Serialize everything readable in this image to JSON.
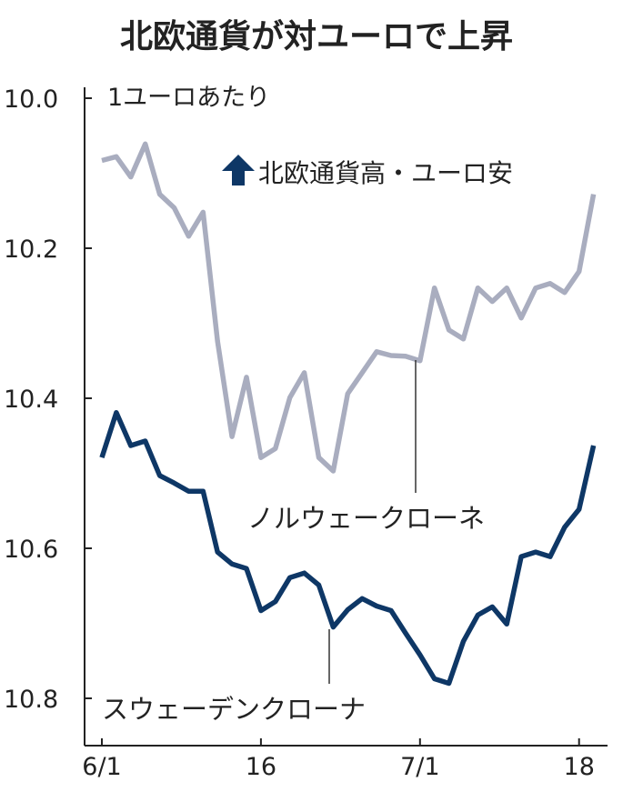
{
  "chart_data": {
    "type": "line",
    "title": "北欧通貨が対ユーロで上昇",
    "unit_label": "1ユーロあたり",
    "direction_note": "北欧通貨高・ユーロ安",
    "y_inverted": true,
    "ylim": [
      10.0,
      10.8
    ],
    "y_ticks": [
      "10.0",
      "10.2",
      "10.4",
      "10.6",
      "10.8"
    ],
    "x_ticks": [
      {
        "label": "6/1",
        "date": "6/1"
      },
      {
        "label": "16",
        "date": "6/16"
      },
      {
        "label": "7/1",
        "date": "7/1"
      },
      {
        "label": "18",
        "date": "7/18"
      }
    ],
    "x": [
      "6/1",
      "6/2",
      "6/3",
      "6/6",
      "6/7",
      "6/8",
      "6/9",
      "6/10",
      "6/13",
      "6/14",
      "6/15",
      "6/16",
      "6/17",
      "6/20",
      "6/21",
      "6/22",
      "6/23",
      "6/24",
      "6/27",
      "6/28",
      "6/29",
      "6/30",
      "7/1",
      "7/4",
      "7/5",
      "7/6",
      "7/7",
      "7/8",
      "7/11",
      "7/12",
      "7/13",
      "7/14",
      "7/15",
      "7/18",
      "7/19"
    ],
    "series": [
      {
        "name": "ノルウェークローネ",
        "color": "#a9adbf",
        "values": [
          10.083,
          10.078,
          10.105,
          10.061,
          10.128,
          10.146,
          10.184,
          10.152,
          10.324,
          10.451,
          10.372,
          10.479,
          10.467,
          10.399,
          10.366,
          10.479,
          10.497,
          10.394,
          10.366,
          10.338,
          10.343,
          10.344,
          10.35,
          10.253,
          10.309,
          10.321,
          10.253,
          10.271,
          10.253,
          10.293,
          10.253,
          10.247,
          10.259,
          10.231,
          10.128
        ]
      },
      {
        "name": "スウェーデンクローナ",
        "color": "#0e3766",
        "values": [
          10.479,
          10.419,
          10.463,
          10.457,
          10.503,
          10.513,
          10.524,
          10.524,
          10.605,
          10.621,
          10.627,
          10.683,
          10.671,
          10.639,
          10.633,
          10.649,
          10.705,
          10.682,
          10.667,
          10.677,
          10.683,
          10.713,
          10.742,
          10.774,
          10.78,
          10.724,
          10.689,
          10.678,
          10.701,
          10.611,
          10.605,
          10.611,
          10.572,
          10.548,
          10.463
        ]
      }
    ],
    "grid": false,
    "legend": "inline labels"
  }
}
